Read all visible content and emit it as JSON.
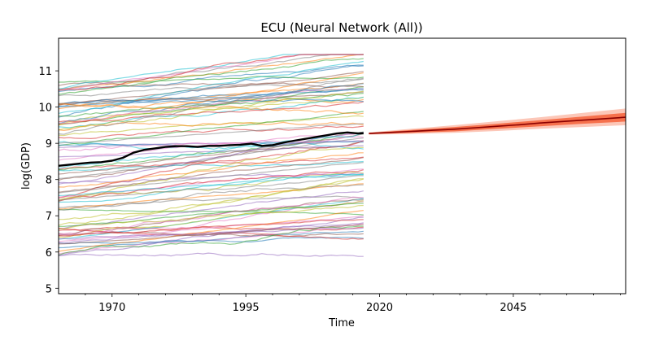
{
  "chart_data": {
    "type": "line",
    "title": "ECU (Neural Network (All))",
    "xlabel": "Time",
    "ylabel": "log(GDP)",
    "xlim": [
      1960,
      2066
    ],
    "ylim": [
      4.85,
      11.9
    ],
    "xticks": [
      1970,
      1995,
      2020,
      2045
    ],
    "yticks": [
      5,
      6,
      7,
      8,
      9,
      10,
      11
    ],
    "grid": false,
    "background_series": {
      "count": 90,
      "x_range": [
        1960,
        2017
      ],
      "value_range": [
        5.3,
        11.5
      ],
      "note_colors": [
        "#1f77b4",
        "#ff7f0e",
        "#2ca02c",
        "#d62728",
        "#9467bd",
        "#8c564b",
        "#e377c2",
        "#7f7f7f",
        "#bcbd22",
        "#17becf"
      ]
    },
    "series": [
      {
        "name": "",
        "role": "mean-historical",
        "color": "#000000",
        "x": [
          1960,
          1962,
          1964,
          1966,
          1968,
          1970,
          1972,
          1974,
          1976,
          1978,
          1980,
          1982,
          1984,
          1986,
          1988,
          1990,
          1992,
          1994,
          1996,
          1998,
          2000,
          2002,
          2004,
          2006,
          2008,
          2010,
          2012,
          2014,
          2016,
          2017
        ],
        "values": [
          8.38,
          8.41,
          8.44,
          8.47,
          8.48,
          8.52,
          8.6,
          8.74,
          8.82,
          8.86,
          8.9,
          8.92,
          8.92,
          8.9,
          8.93,
          8.93,
          8.95,
          8.96,
          8.99,
          8.93,
          8.95,
          9.02,
          9.07,
          9.12,
          9.17,
          9.22,
          9.27,
          9.3,
          9.27,
          9.28
        ]
      },
      {
        "name": "",
        "role": "forecast-mean",
        "color": "#8b0000",
        "x": [
          2018,
          2022,
          2026,
          2030,
          2034,
          2038,
          2042,
          2046,
          2050,
          2054,
          2058,
          2062,
          2066
        ],
        "values": [
          9.27,
          9.3,
          9.33,
          9.36,
          9.39,
          9.43,
          9.47,
          9.51,
          9.56,
          9.6,
          9.64,
          9.68,
          9.72
        ]
      }
    ],
    "forecast_bands": {
      "x": [
        2018,
        2026,
        2034,
        2042,
        2050,
        2058,
        2066
      ],
      "inner": {
        "color": "#f4623a",
        "lower": [
          9.25,
          9.29,
          9.33,
          9.4,
          9.47,
          9.54,
          9.6
        ],
        "upper": [
          9.29,
          9.37,
          9.45,
          9.54,
          9.64,
          9.74,
          9.84
        ]
      },
      "outer": {
        "color": "#fbb4a0",
        "lower": [
          9.24,
          9.26,
          9.29,
          9.34,
          9.4,
          9.45,
          9.5
        ],
        "upper": [
          9.3,
          9.4,
          9.5,
          9.61,
          9.72,
          9.84,
          9.96
        ]
      }
    }
  }
}
